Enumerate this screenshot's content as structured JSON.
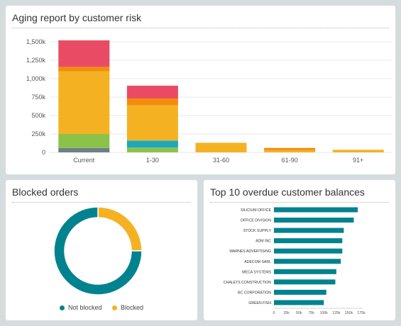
{
  "panels": {
    "aging": {
      "title": "Aging report by customer risk"
    },
    "blocked": {
      "title": "Blocked orders"
    },
    "overdue": {
      "title": "Top 10 overdue customer balances"
    }
  },
  "colors": {
    "red": "#ea4b64",
    "orange": "#f48c0c",
    "yellow": "#f4b223",
    "green": "#8bc34a",
    "cyan": "#1ea7bd",
    "gray": "#6d8088",
    "teal": "#00838f",
    "grid": "#e5e9ea"
  },
  "chart_data": [
    {
      "type": "bar",
      "stacked": true,
      "categories": [
        "Current",
        "1-30",
        "31-60",
        "61-90",
        "91+"
      ],
      "series": [
        {
          "color": "#6d8088",
          "values": [
            60,
            0,
            0,
            0,
            0
          ]
        },
        {
          "color": "#8bc34a",
          "values": [
            190,
            65,
            0,
            0,
            0
          ]
        },
        {
          "color": "#1ea7bd",
          "values": [
            0,
            95,
            0,
            0,
            0
          ]
        },
        {
          "color": "#f4b223",
          "values": [
            850,
            480,
            130,
            30,
            35
          ]
        },
        {
          "color": "#f48c0c",
          "values": [
            60,
            90,
            0,
            30,
            0
          ]
        },
        {
          "color": "#ea4b64",
          "values": [
            360,
            175,
            0,
            0,
            0
          ]
        }
      ],
      "yticks": [
        "0",
        "250k",
        "500k",
        "750k",
        "1,000k",
        "1,250k",
        "1,500k"
      ],
      "ylim": [
        0,
        1500
      ],
      "grid": true
    },
    {
      "type": "pie",
      "donut": true,
      "labels": [
        "Not blocked",
        "Blocked"
      ],
      "values": [
        75,
        25
      ],
      "colors": [
        "#00838f",
        "#f4b223"
      ],
      "legend": "bottom"
    },
    {
      "type": "bar",
      "orientation": "horizontal",
      "categories": [
        "SILICIUM OFFICE",
        "OFFICE DIVISION",
        "STOCK SUPPLY",
        "ADM INC",
        "WARNES ADVERTISING",
        "ADECOM SARL",
        "MECA SYSTEMS",
        "CHALETS CONSTRUCTION",
        "BC CORPORATION",
        "GREEN FISH"
      ],
      "values": [
        168,
        160,
        140,
        137,
        137,
        134,
        125,
        123,
        105,
        100
      ],
      "xticks": [
        "0",
        "25k",
        "50k",
        "75k",
        "100k",
        "125k",
        "150k",
        "175k"
      ],
      "xlim": [
        0,
        175
      ],
      "color": "#00838f"
    }
  ]
}
